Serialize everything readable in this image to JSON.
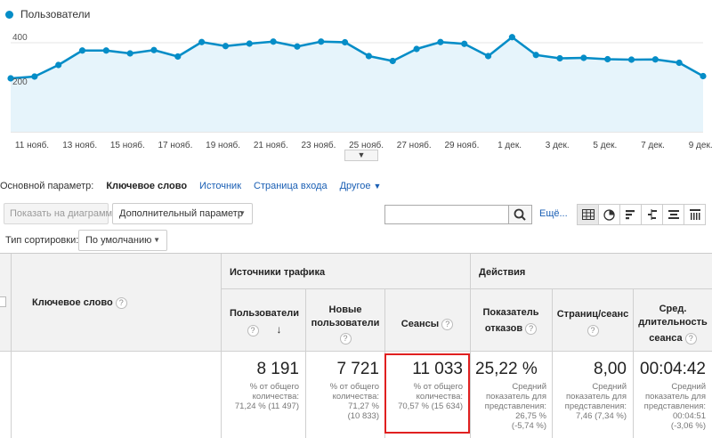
{
  "chart": {
    "legend_label": "Пользователи",
    "series_color": "#058dc7",
    "fill_color": "#e6f4fb",
    "y_ticks": [
      {
        "label": "400",
        "value": 400
      },
      {
        "label": "200",
        "value": 200
      }
    ],
    "ylim": [
      0,
      480
    ],
    "x_labels": [
      "11 нояб.",
      "13 нояб.",
      "15 нояб.",
      "17 нояб.",
      "19 нояб.",
      "21 нояб.",
      "23 нояб.",
      "25 нояб.",
      "27 нояб.",
      "29 нояб.",
      "1 дек.",
      "3 дек.",
      "5 дек.",
      "7 дек.",
      "9 дек."
    ],
    "values": [
      240,
      248,
      300,
      365,
      365,
      352,
      367,
      338,
      403,
      385,
      396,
      405,
      383,
      405,
      402,
      340,
      318,
      372,
      403,
      395,
      340,
      425,
      345,
      330,
      332,
      326,
      324,
      325,
      310,
      250
    ],
    "collapse_icon": "chevron-down-icon"
  },
  "dimension": {
    "label": "Основной параметр:",
    "selected": "Ключевое слово",
    "links": [
      "Источник",
      "Страница входа"
    ],
    "other": "Другое"
  },
  "controls": {
    "plot_button": "Показать на диаграмме",
    "secondary_dim": "Дополнительный параметр",
    "search_value": "",
    "more": "Ещё...",
    "sort_label": "Тип сортировки:",
    "sort_value": "По умолчанию",
    "view_icons": [
      "grid-view-icon",
      "pie-view-icon",
      "performance-view-icon",
      "comparison-view-icon",
      "term-cloud-view-icon",
      "pivot-view-icon"
    ]
  },
  "table": {
    "key_header": "Ключевое слово",
    "group_traffic": "Источники трафика",
    "group_actions": "Действия",
    "columns": [
      {
        "h1": "Пользователи",
        "h2": "",
        "value": "8 191",
        "s1": "% от общего",
        "s2": "количества:",
        "s3": "71,24 % (11 497)",
        "s4": ""
      },
      {
        "h1": "Новые",
        "h2": "пользователи",
        "value": "7 721",
        "s1": "% от общего",
        "s2": "количества:",
        "s3": "71,27 %",
        "s4": "(10 833)"
      },
      {
        "h1": "Сеансы",
        "h2": "",
        "value": "11 033",
        "s1": "% от общего",
        "s2": "количества:",
        "s3": "70,57 % (15 634)",
        "s4": ""
      },
      {
        "h1": "Показатель",
        "h2": "отказов",
        "value": "25,22 %",
        "s1": "Средний",
        "s2": "показатель для",
        "s3": "представления:",
        "s4": "26,75 %",
        "s5": "(-5,74 %)"
      },
      {
        "h1": "Страниц/сеанс",
        "h2": "",
        "value": "8,00",
        "s1": "Средний",
        "s2": "показатель для",
        "s3": "представления:",
        "s4": "7,46 (7,34 %)"
      },
      {
        "h1": "Сред.",
        "h2": "длительность",
        "h3": "сеанса",
        "value": "00:04:42",
        "s1": "Средний",
        "s2": "показатель для",
        "s3": "представления:",
        "s4": "00:04:51",
        "s5": "(-3,06 %)"
      }
    ],
    "highlight_color": "#e02020"
  }
}
